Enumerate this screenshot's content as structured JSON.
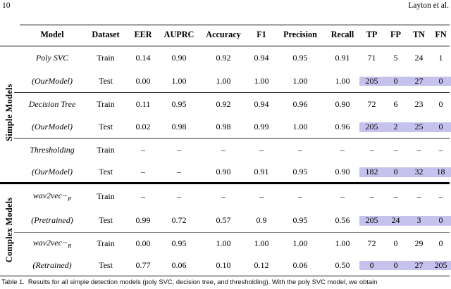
{
  "page_header": {
    "page_number": "10",
    "authors": "Layton et al."
  },
  "table": {
    "columns": [
      "Model",
      "Dataset",
      "EER",
      "AUPRC",
      "Accuracy",
      "F1",
      "Precision",
      "Recall",
      "TP",
      "FP",
      "TN",
      "FN"
    ],
    "groups": [
      {
        "label": "Simple Models"
      },
      {
        "label": "Complex Models"
      }
    ],
    "highlight_color": "#c6c2ee",
    "rows": [
      {
        "group": "simple",
        "model": "Poly SVC",
        "model_sub": "",
        "dataset": "Train",
        "values": [
          "0.14",
          "0.90",
          "0.92",
          "0.94",
          "0.95",
          "0.91",
          "71",
          "5",
          "24",
          "1"
        ],
        "highlighted": false
      },
      {
        "group": "simple",
        "model": "(OurModel)",
        "model_sub": "",
        "dataset": "Test",
        "values": [
          "0.00",
          "1.00",
          "1.00",
          "1.00",
          "1.00",
          "1.00",
          "205",
          "0",
          "27",
          "0"
        ],
        "highlighted": true
      },
      {
        "group": "simple",
        "model": "Decision Tree",
        "model_sub": "",
        "dataset": "Train",
        "values": [
          "0.11",
          "0.95",
          "0.92",
          "0.94",
          "0.96",
          "0.90",
          "72",
          "6",
          "23",
          "0"
        ],
        "highlighted": false
      },
      {
        "group": "simple",
        "model": "(OurModel)",
        "model_sub": "",
        "dataset": "Test",
        "values": [
          "0.02",
          "0.98",
          "0.98",
          "0.99",
          "1.00",
          "0.96",
          "205",
          "2",
          "25",
          "0"
        ],
        "highlighted": true
      },
      {
        "group": "simple",
        "model": "Thresholding",
        "model_sub": "",
        "dataset": "Train",
        "values": [
          "–",
          "–",
          "–",
          "–",
          "–",
          "–",
          "–",
          "–",
          "–",
          "–"
        ],
        "highlighted": false
      },
      {
        "group": "simple",
        "model": "(OurModel)",
        "model_sub": "",
        "dataset": "Test",
        "values": [
          "–",
          "–",
          "0.90",
          "0.91",
          "0.95",
          "0.90",
          "182",
          "0",
          "32",
          "18"
        ],
        "highlighted": true
      },
      {
        "group": "complex",
        "model": "wav2vec−",
        "model_sub": "P",
        "dataset": "Train",
        "values": [
          "–",
          "–",
          "–",
          "–",
          "–",
          "–",
          "–",
          "–",
          "–",
          "–"
        ],
        "highlighted": false
      },
      {
        "group": "complex",
        "model": "(Pretrained)",
        "model_sub": "",
        "dataset": "Test",
        "values": [
          "0.99",
          "0.72",
          "0.57",
          "0.9",
          "0.95",
          "0.56",
          "205",
          "24",
          "3",
          "0"
        ],
        "highlighted": true
      },
      {
        "group": "complex",
        "model": "wav2vec−",
        "model_sub": "R",
        "dataset": "Train",
        "values": [
          "0.00",
          "0.95",
          "1.00",
          "1.00",
          "1.00",
          "1.00",
          "72",
          "0",
          "29",
          "0"
        ],
        "highlighted": false
      },
      {
        "group": "complex",
        "model": "(Retrained)",
        "model_sub": "",
        "dataset": "Test",
        "values": [
          "0.77",
          "0.06",
          "0.10",
          "0.12",
          "0.06",
          "0.50",
          "0",
          "0",
          "27",
          "205"
        ],
        "highlighted": true
      }
    ]
  },
  "caption": {
    "label": "Table 1.",
    "text": "Results for all simple detection models (poly SVC, decision tree, and thresholding). With the poly SVC model, we obtain"
  }
}
